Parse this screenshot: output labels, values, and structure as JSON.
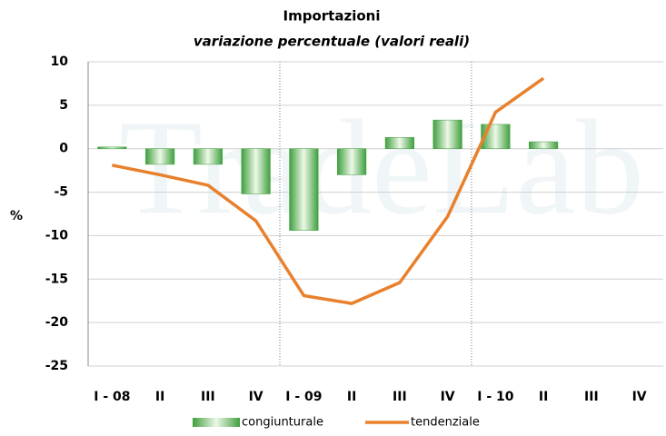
{
  "chart_data": {
    "type": "bar",
    "title": "Importazioni",
    "subtitle": "variazione percentuale (valori reali)",
    "watermark": "TradeLab",
    "y_label": "%",
    "categories": [
      "I - 08",
      "II",
      "III",
      "IV",
      "I - 09",
      "II",
      "III",
      "IV",
      "I - 10",
      "II",
      "III",
      "IV"
    ],
    "series": [
      {
        "name": "congiunturale",
        "type": "bar",
        "color": "#3f9f3f",
        "values": [
          0.2,
          -1.8,
          -1.8,
          -5.2,
          -9.4,
          -3.0,
          1.3,
          3.3,
          2.8,
          0.8,
          null,
          null
        ]
      },
      {
        "name": "tendenziale",
        "type": "line",
        "color": "#e8802c",
        "values": [
          -1.9,
          -3.0,
          -4.2,
          -8.3,
          -16.9,
          -17.8,
          -15.4,
          -7.8,
          4.2,
          8.1,
          null,
          null
        ]
      }
    ],
    "ylim": [
      -25,
      10
    ],
    "yticks": [
      -25,
      -20,
      -15,
      -10,
      -5,
      0,
      5,
      10
    ],
    "grid": true,
    "legend": "bottom"
  }
}
